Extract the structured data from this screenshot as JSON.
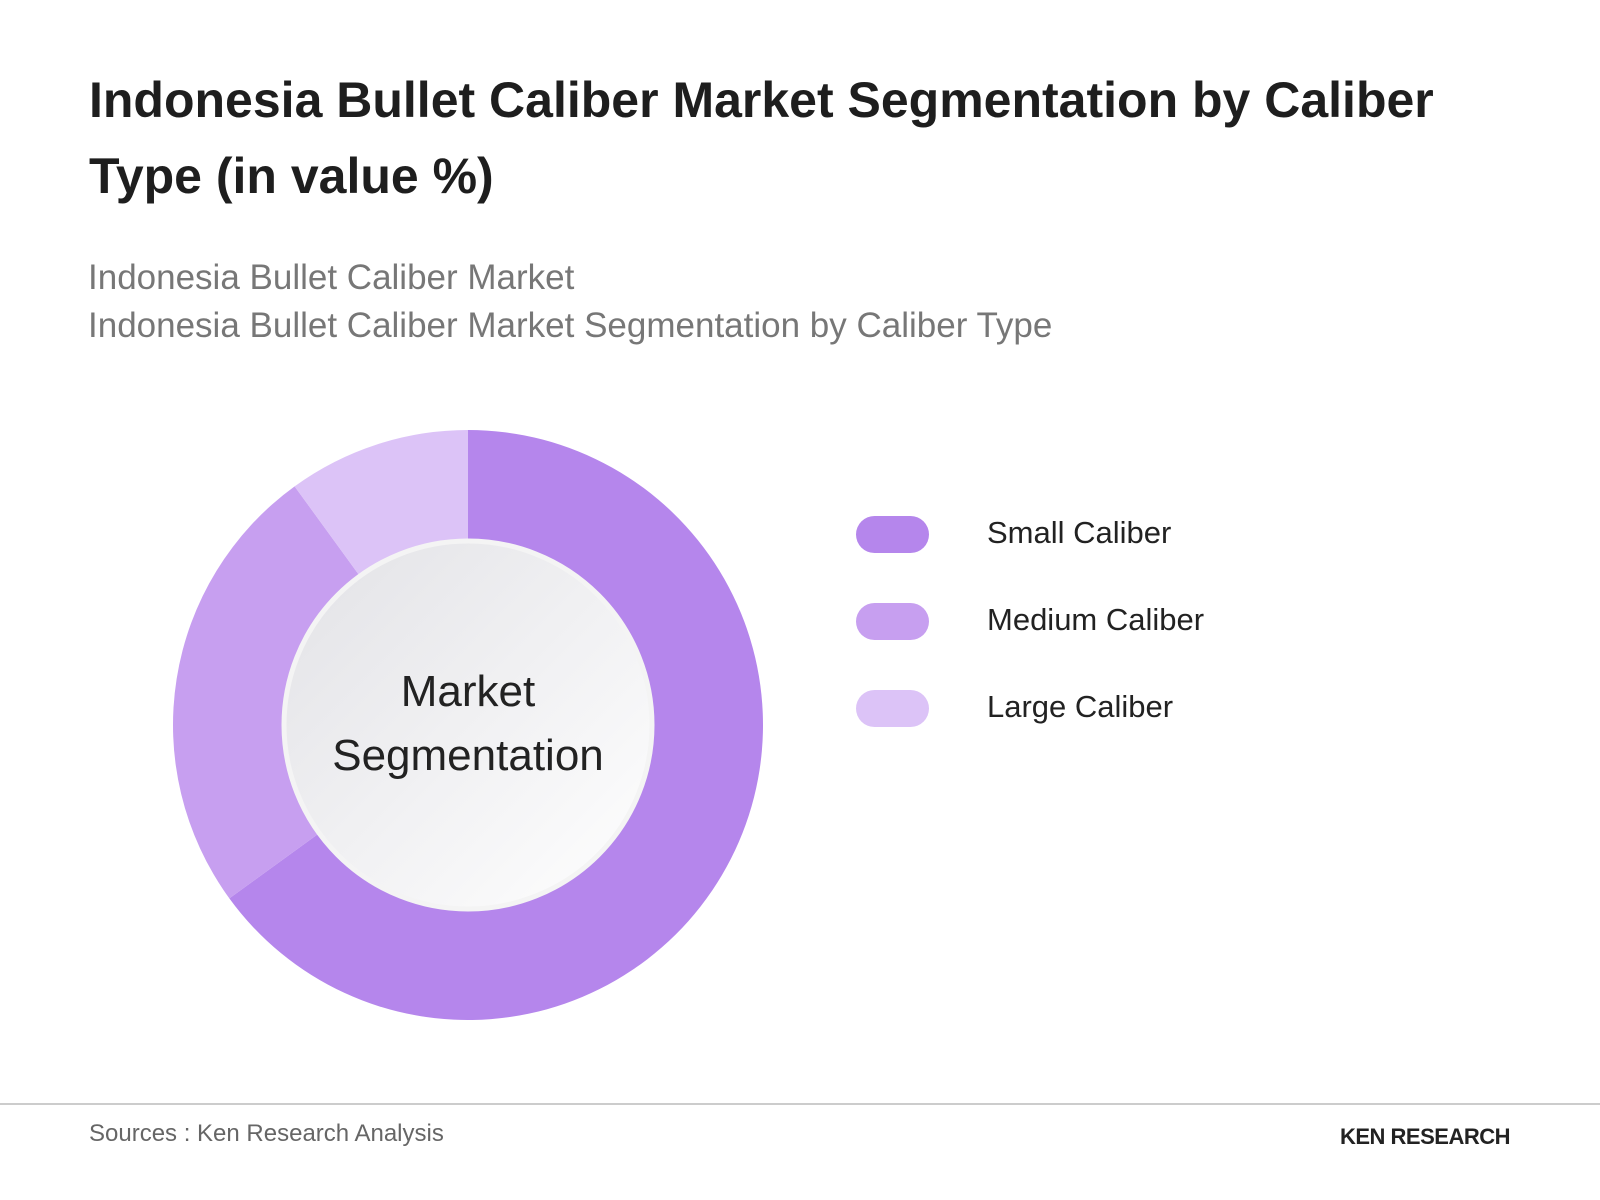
{
  "chart_data": {
    "type": "pie",
    "title": "Indonesia Bullet Caliber Market Segmentation by Caliber Type (in value %)",
    "subtitle": [
      "Indonesia Bullet Caliber Market",
      "Indonesia Bullet Caliber Market Segmentation by Caliber Type"
    ],
    "center_label": "Market Segmentation",
    "categories": [
      "Small Caliber",
      "Medium Caliber",
      "Large Caliber"
    ],
    "values": [
      65,
      25,
      10
    ],
    "colors": [
      "#b586ec",
      "#c79ff0",
      "#dcc3f7"
    ],
    "donut": true
  },
  "footer": {
    "source": "Sources : Ken Research Analysis",
    "brand": "KEN RESEARCH"
  }
}
